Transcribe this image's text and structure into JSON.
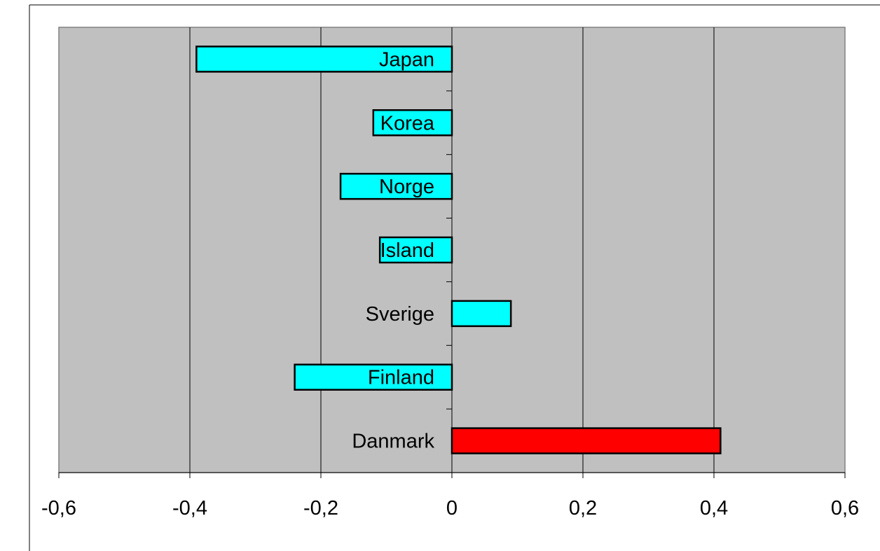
{
  "chart_data": {
    "type": "bar",
    "orientation": "horizontal",
    "title": "",
    "xlabel": "",
    "ylabel": "",
    "categories": [
      "Japan",
      "Korea",
      "Norge",
      "Island",
      "Sverige",
      "Finland",
      "Danmark"
    ],
    "values": [
      -0.39,
      -0.12,
      -0.17,
      -0.11,
      0.09,
      -0.24,
      0.41
    ],
    "colors": [
      "#00FFFF",
      "#00FFFF",
      "#00FFFF",
      "#00FFFF",
      "#00FFFF",
      "#00FFFF",
      "#FF0000"
    ],
    "xlim": [
      -0.6,
      0.6
    ],
    "xticks": [
      -0.6,
      -0.4,
      -0.2,
      0,
      0.2,
      0.4,
      0.6
    ],
    "xtick_labels": [
      "-0,6",
      "-0,4",
      "-0,2",
      "0",
      "0,2",
      "0,4",
      "0,6"
    ],
    "grid": "vertical",
    "legend": "none",
    "plot_background": "#C0C0C0"
  }
}
